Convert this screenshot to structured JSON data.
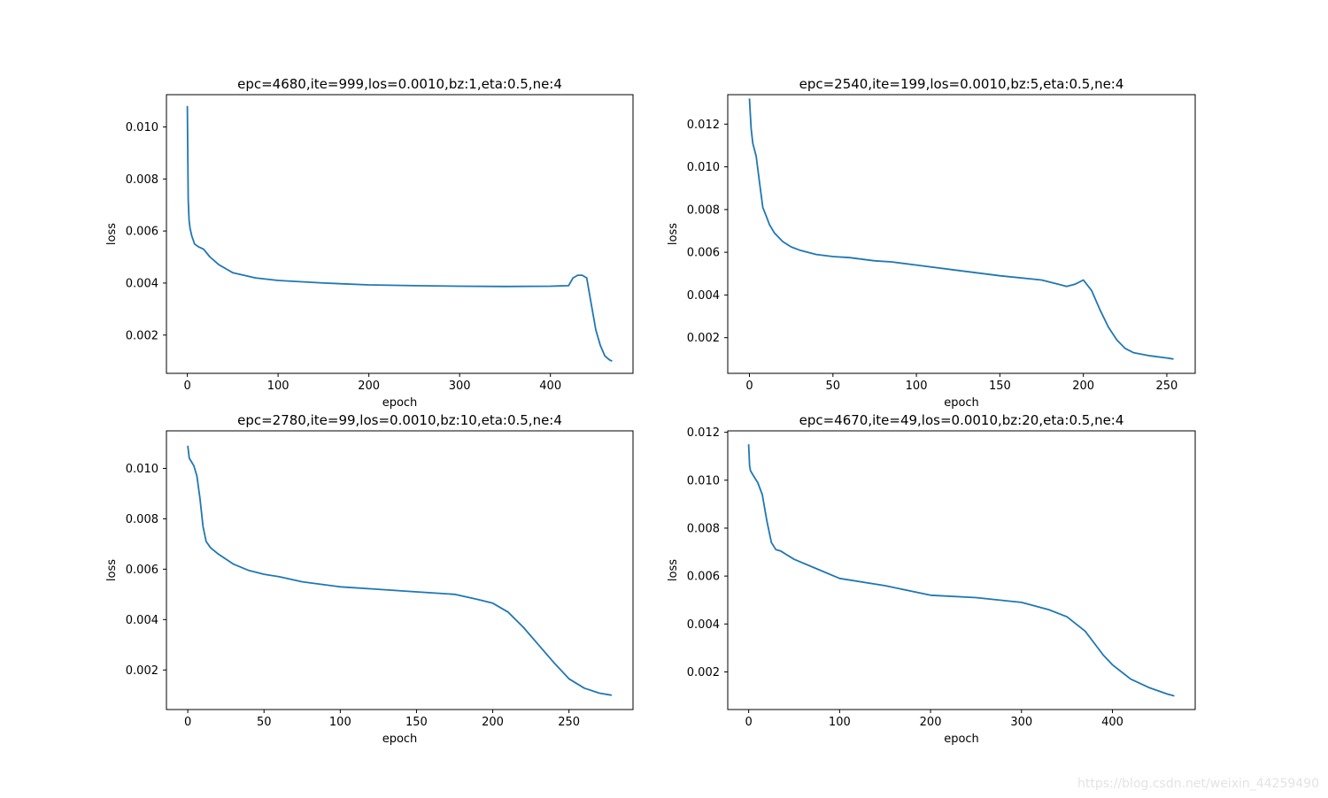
{
  "figure": {
    "watermark": "https://blog.csdn.net/weixin_44259490",
    "line_color": "#1f77b4"
  },
  "chart_data": [
    {
      "type": "line",
      "title": "epc=4680,ite=999,los=0.0010,bz:1,eta:0.5,ne:4",
      "xlabel": "epoch",
      "ylabel": "loss",
      "xlim": [
        -23,
        491
      ],
      "ylim": [
        0.00053,
        0.01124
      ],
      "xticks": [
        0,
        100,
        200,
        300,
        400
      ],
      "yticks": [
        0.002,
        0.004,
        0.006,
        0.008,
        0.01
      ],
      "ytick_labels": [
        "0.002",
        "0.004",
        "0.006",
        "0.008",
        "0.010"
      ],
      "grid": false,
      "series": [
        {
          "x": [
            0,
            1,
            2,
            3,
            5,
            8,
            12,
            18,
            25,
            35,
            50,
            75,
            100,
            150,
            200,
            250,
            300,
            350,
            400,
            420,
            425,
            430,
            435,
            440,
            445,
            450,
            455,
            460,
            465,
            468
          ],
          "y": [
            0.0108,
            0.0072,
            0.0064,
            0.0061,
            0.0058,
            0.0055,
            0.0054,
            0.0053,
            0.005,
            0.0047,
            0.0044,
            0.0042,
            0.0041,
            0.004,
            0.00393,
            0.0039,
            0.00388,
            0.00387,
            0.00388,
            0.0039,
            0.0042,
            0.0043,
            0.0043,
            0.0042,
            0.0032,
            0.0022,
            0.0016,
            0.0012,
            0.00105,
            0.001
          ]
        }
      ]
    },
    {
      "type": "line",
      "title": "epc=2540,ite=199,los=0.0010,bz:5,eta:0.5,ne:4",
      "xlabel": "epoch",
      "ylabel": "loss",
      "xlim": [
        -13,
        267
      ],
      "ylim": [
        0.00033,
        0.01338
      ],
      "xticks": [
        0,
        50,
        100,
        150,
        200,
        250
      ],
      "yticks": [
        0.002,
        0.004,
        0.006,
        0.008,
        0.01,
        0.012
      ],
      "ytick_labels": [
        "0.002",
        "0.004",
        "0.006",
        "0.008",
        "0.010",
        "0.012"
      ],
      "grid": false,
      "series": [
        {
          "x": [
            0,
            1,
            2,
            4,
            6,
            8,
            10,
            12,
            15,
            20,
            25,
            30,
            40,
            50,
            60,
            75,
            85,
            100,
            125,
            150,
            175,
            185,
            190,
            195,
            200,
            205,
            210,
            215,
            220,
            225,
            230,
            240,
            250,
            254
          ],
          "y": [
            0.0132,
            0.0118,
            0.0111,
            0.0105,
            0.0093,
            0.0081,
            0.0077,
            0.0073,
            0.0069,
            0.0065,
            0.00625,
            0.0061,
            0.0059,
            0.0058,
            0.00575,
            0.0056,
            0.00555,
            0.0054,
            0.00515,
            0.0049,
            0.0047,
            0.0045,
            0.0044,
            0.0045,
            0.0047,
            0.0042,
            0.0033,
            0.0025,
            0.0019,
            0.0015,
            0.0013,
            0.00115,
            0.00105,
            0.001
          ]
        }
      ]
    },
    {
      "type": "line",
      "title": "epc=2780,ite=99,los=0.0010,bz:10,eta:0.5,ne:4",
      "xlabel": "epoch",
      "ylabel": "loss",
      "xlim": [
        -14,
        292
      ],
      "ylim": [
        0.00043,
        0.01149
      ],
      "xticks": [
        0,
        50,
        100,
        150,
        200,
        250
      ],
      "yticks": [
        0.002,
        0.004,
        0.006,
        0.008,
        0.01
      ],
      "ytick_labels": [
        "0.002",
        "0.004",
        "0.006",
        "0.008",
        "0.010"
      ],
      "grid": false,
      "series": [
        {
          "x": [
            0,
            1,
            2,
            4,
            6,
            8,
            10,
            12,
            15,
            20,
            30,
            40,
            50,
            60,
            75,
            100,
            125,
            150,
            175,
            190,
            200,
            210,
            220,
            230,
            240,
            250,
            260,
            270,
            278
          ],
          "y": [
            0.0109,
            0.0104,
            0.0103,
            0.0101,
            0.0097,
            0.0088,
            0.0077,
            0.0071,
            0.00685,
            0.0066,
            0.0062,
            0.00595,
            0.0058,
            0.0057,
            0.0055,
            0.0053,
            0.0052,
            0.0051,
            0.005,
            0.0048,
            0.00465,
            0.0043,
            0.0037,
            0.003,
            0.0023,
            0.00165,
            0.00128,
            0.00108,
            0.001
          ]
        }
      ]
    },
    {
      "type": "line",
      "title": "epc=4670,ite=49,los=0.0010,bz:20,eta:0.5,ne:4",
      "xlabel": "epoch",
      "ylabel": "loss",
      "xlim": [
        -23,
        491
      ],
      "ylim": [
        0.00043,
        0.01206
      ],
      "xticks": [
        0,
        100,
        200,
        300,
        400
      ],
      "yticks": [
        0.002,
        0.004,
        0.006,
        0.008,
        0.01,
        0.012
      ],
      "ytick_labels": [
        "0.002",
        "0.004",
        "0.006",
        "0.008",
        "0.010",
        "0.012"
      ],
      "grid": false,
      "series": [
        {
          "x": [
            0,
            1,
            2,
            5,
            10,
            15,
            20,
            25,
            30,
            35,
            50,
            75,
            100,
            150,
            200,
            250,
            300,
            330,
            350,
            370,
            380,
            390,
            400,
            420,
            440,
            460,
            468
          ],
          "y": [
            0.0115,
            0.0106,
            0.0104,
            0.0102,
            0.0099,
            0.0094,
            0.0083,
            0.0074,
            0.0071,
            0.00705,
            0.0067,
            0.0063,
            0.0059,
            0.0056,
            0.0052,
            0.0051,
            0.0049,
            0.0046,
            0.0043,
            0.0037,
            0.0032,
            0.0027,
            0.0023,
            0.0017,
            0.00135,
            0.00108,
            0.001
          ]
        }
      ]
    }
  ]
}
